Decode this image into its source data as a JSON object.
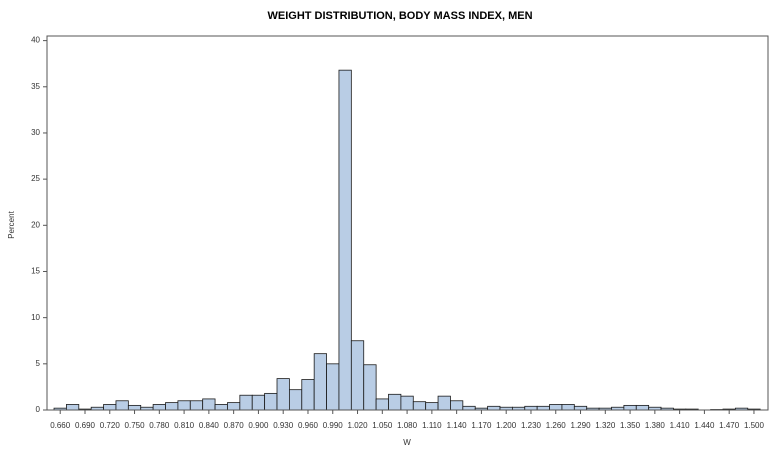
{
  "chart_data": {
    "type": "histogram",
    "title": "WEIGHT DISTRIBUTION, BODY MASS INDEX, MEN",
    "x_label": "W",
    "y_label": "Percent",
    "color": "#b9cde5",
    "bins": [
      0.6525,
      0.6675,
      0.6825,
      0.6975,
      0.7125,
      0.7275,
      0.7425,
      0.7575,
      0.7725,
      0.7875,
      0.8025,
      0.8175,
      0.8325,
      0.8475,
      0.8625,
      0.8775,
      0.8925,
      0.9075,
      0.9225,
      0.9375,
      0.9525,
      0.9675,
      0.9825,
      0.9975,
      1.0125,
      1.0275,
      1.0425,
      1.0575,
      1.0725,
      1.0875,
      1.1025,
      1.1175,
      1.1325,
      1.1475,
      1.1625,
      1.1775,
      1.1925,
      1.2075,
      1.2225,
      1.2375,
      1.2525,
      1.2675,
      1.2825,
      1.2975,
      1.3125,
      1.3275,
      1.3425,
      1.3575,
      1.3725,
      1.3875,
      1.4025,
      1.4175,
      1.4325,
      1.4475,
      1.4625,
      1.4775,
      1.4925,
      1.5075
    ],
    "values": [
      0.2,
      0.6,
      0.1,
      0.3,
      0.6,
      1.0,
      0.5,
      0.3,
      0.6,
      0.8,
      1.0,
      1.0,
      1.2,
      0.6,
      0.8,
      1.6,
      1.6,
      1.8,
      3.4,
      2.2,
      3.3,
      6.1,
      5.0,
      36.8,
      7.5,
      4.9,
      1.2,
      1.7,
      1.5,
      0.9,
      0.8,
      1.5,
      1.0,
      0.4,
      0.2,
      0.4,
      0.3,
      0.3,
      0.4,
      0.4,
      0.6,
      0.6,
      0.4,
      0.2,
      0.2,
      0.3,
      0.5,
      0.5,
      0.3,
      0.2,
      0.1,
      0.1,
      0,
      0.05,
      0.1,
      0.2,
      0.1
    ],
    "xlim": [
      0.644,
      1.517
    ],
    "ylim": [
      0,
      40.5
    ],
    "xticks": [
      {
        "value": 0.66,
        "label": "0.660"
      },
      {
        "value": 0.69,
        "label": "0.690"
      },
      {
        "value": 0.72,
        "label": "0.720"
      },
      {
        "value": 0.75,
        "label": "0.750"
      },
      {
        "value": 0.78,
        "label": "0.780"
      },
      {
        "value": 0.81,
        "label": "0.810"
      },
      {
        "value": 0.84,
        "label": "0.840"
      },
      {
        "value": 0.87,
        "label": "0.870"
      },
      {
        "value": 0.9,
        "label": "0.900"
      },
      {
        "value": 0.93,
        "label": "0.930"
      },
      {
        "value": 0.96,
        "label": "0.960"
      },
      {
        "value": 0.99,
        "label": "0.990"
      },
      {
        "value": 1.02,
        "label": "1.020"
      },
      {
        "value": 1.05,
        "label": "1.050"
      },
      {
        "value": 1.08,
        "label": "1.080"
      },
      {
        "value": 1.11,
        "label": "1.110"
      },
      {
        "value": 1.14,
        "label": "1.140"
      },
      {
        "value": 1.17,
        "label": "1.170"
      },
      {
        "value": 1.2,
        "label": "1.200"
      },
      {
        "value": 1.23,
        "label": "1.230"
      },
      {
        "value": 1.26,
        "label": "1.260"
      },
      {
        "value": 1.29,
        "label": "1.290"
      },
      {
        "value": 1.32,
        "label": "1.320"
      },
      {
        "value": 1.35,
        "label": "1.350"
      },
      {
        "value": 1.38,
        "label": "1.380"
      },
      {
        "value": 1.41,
        "label": "1.410"
      },
      {
        "value": 1.44,
        "label": "1.440"
      },
      {
        "value": 1.47,
        "label": "1.470"
      },
      {
        "value": 1.5,
        "label": "1.500"
      }
    ],
    "yticks": [
      0,
      5,
      10,
      15,
      20,
      25,
      30,
      35,
      40
    ]
  }
}
